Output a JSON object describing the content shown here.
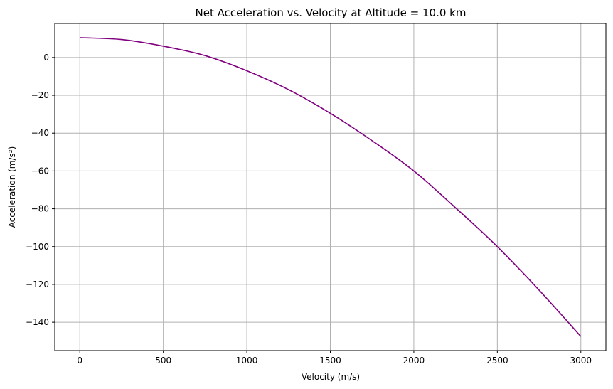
{
  "chart_data": {
    "type": "line",
    "title": "Net Acceleration vs. Velocity at Altitude = 10.0 km",
    "xlabel": "Velocity (m/s)",
    "ylabel": "Acceleration (m/s²)",
    "xlim": [
      -150,
      3150
    ],
    "ylim": [
      -155,
      18
    ],
    "xticks": [
      0,
      500,
      1000,
      1500,
      2000,
      2500,
      3000
    ],
    "yticks": [
      0,
      -20,
      -40,
      -60,
      -80,
      -100,
      -120,
      -140
    ],
    "grid": true,
    "series": [
      {
        "color": "#800080",
        "x": [
          0,
          250,
          500,
          750,
          1000,
          1250,
          1500,
          1750,
          2000,
          2250,
          2500,
          2750,
          3000
        ],
        "y": [
          10.5,
          9.5,
          6.0,
          1.0,
          -7.0,
          -17.0,
          -29.5,
          -44.0,
          -60.0,
          -79.5,
          -100.0,
          -123.0,
          -147.5
        ]
      }
    ]
  }
}
